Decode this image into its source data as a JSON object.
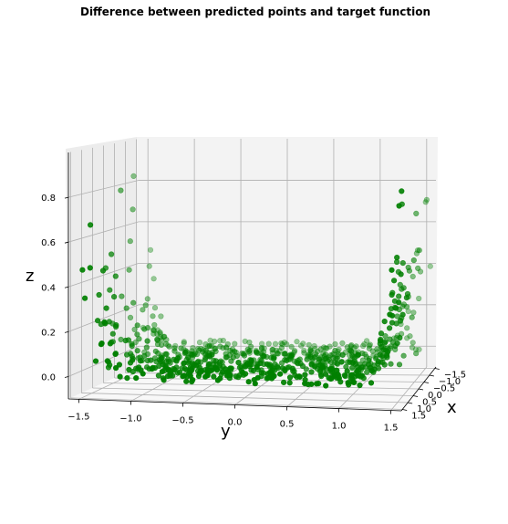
{
  "chart_data": {
    "type": "scatter",
    "projection": "3d",
    "title": "Difference between predicted points and target function",
    "xlabel": "x",
    "ylabel": "y",
    "zlabel": "z",
    "x_ticks": [
      "−1.5",
      "−1.0",
      "−0.5",
      "0.0",
      "0.5",
      "1.0",
      "1.5"
    ],
    "y_ticks": [
      "−1.5",
      "−1.0",
      "−0.5",
      "0.0",
      "0.5",
      "1.0",
      "1.5"
    ],
    "z_ticks": [
      "0.0",
      "0.2",
      "0.4",
      "0.6",
      "0.8"
    ],
    "xlim": [
      -1.6,
      1.6
    ],
    "ylim": [
      -1.6,
      1.6
    ],
    "zlim": [
      -0.1,
      1.0
    ],
    "grid": true,
    "marker_color": "#008000",
    "grid_seed": 17,
    "points_sample": [
      {
        "x": -1.2,
        "y": -1.56,
        "z": 0.83
      },
      {
        "x": -0.9,
        "y": -1.5,
        "z": 0.68
      },
      {
        "x": 1.1,
        "y": 1.55,
        "z": 0.86
      },
      {
        "x": 0.6,
        "y": 1.5,
        "z": 0.78
      },
      {
        "x": 0.2,
        "y": 0.0,
        "z": 0.01
      },
      {
        "x": -0.3,
        "y": 0.5,
        "z": 0.02
      }
    ]
  },
  "colors": {
    "marker": "#008000",
    "pane_left": "#f2f2f2",
    "pane_back": "#f2f2f2",
    "pane_floor": "#fafafa",
    "grid": "#b0b0b0"
  }
}
